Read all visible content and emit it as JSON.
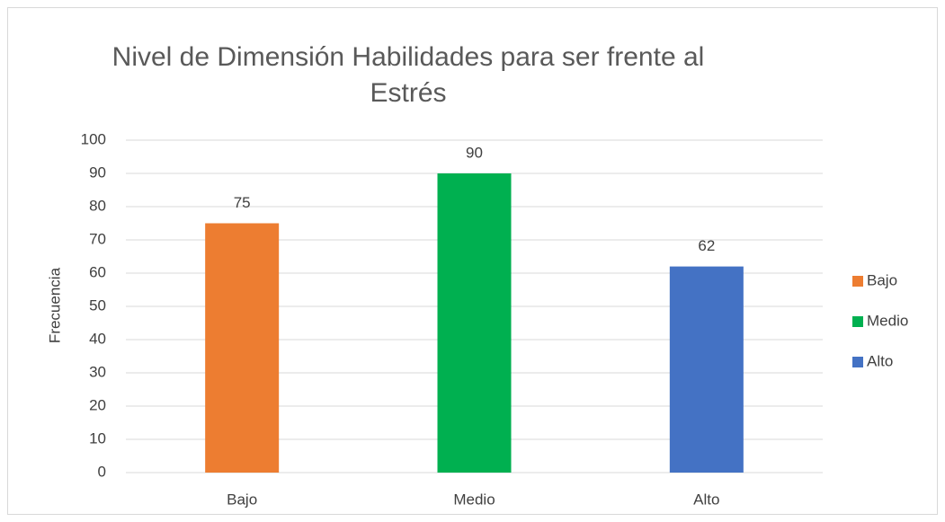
{
  "chart_data": {
    "type": "bar",
    "title": "Nivel de Dimensión Habilidades para ser frente al Estrés",
    "y_label": "Frecuencia",
    "categories": [
      "Bajo",
      "Medio",
      "Alto"
    ],
    "values": [
      75,
      90,
      62
    ],
    "colors": [
      "#ed7d31",
      "#00b050",
      "#4472c4"
    ],
    "ylim": [
      0,
      100
    ],
    "yticks": [
      0,
      10,
      20,
      30,
      40,
      50,
      60,
      70,
      80,
      90,
      100
    ],
    "grid": true,
    "legend": "right"
  }
}
